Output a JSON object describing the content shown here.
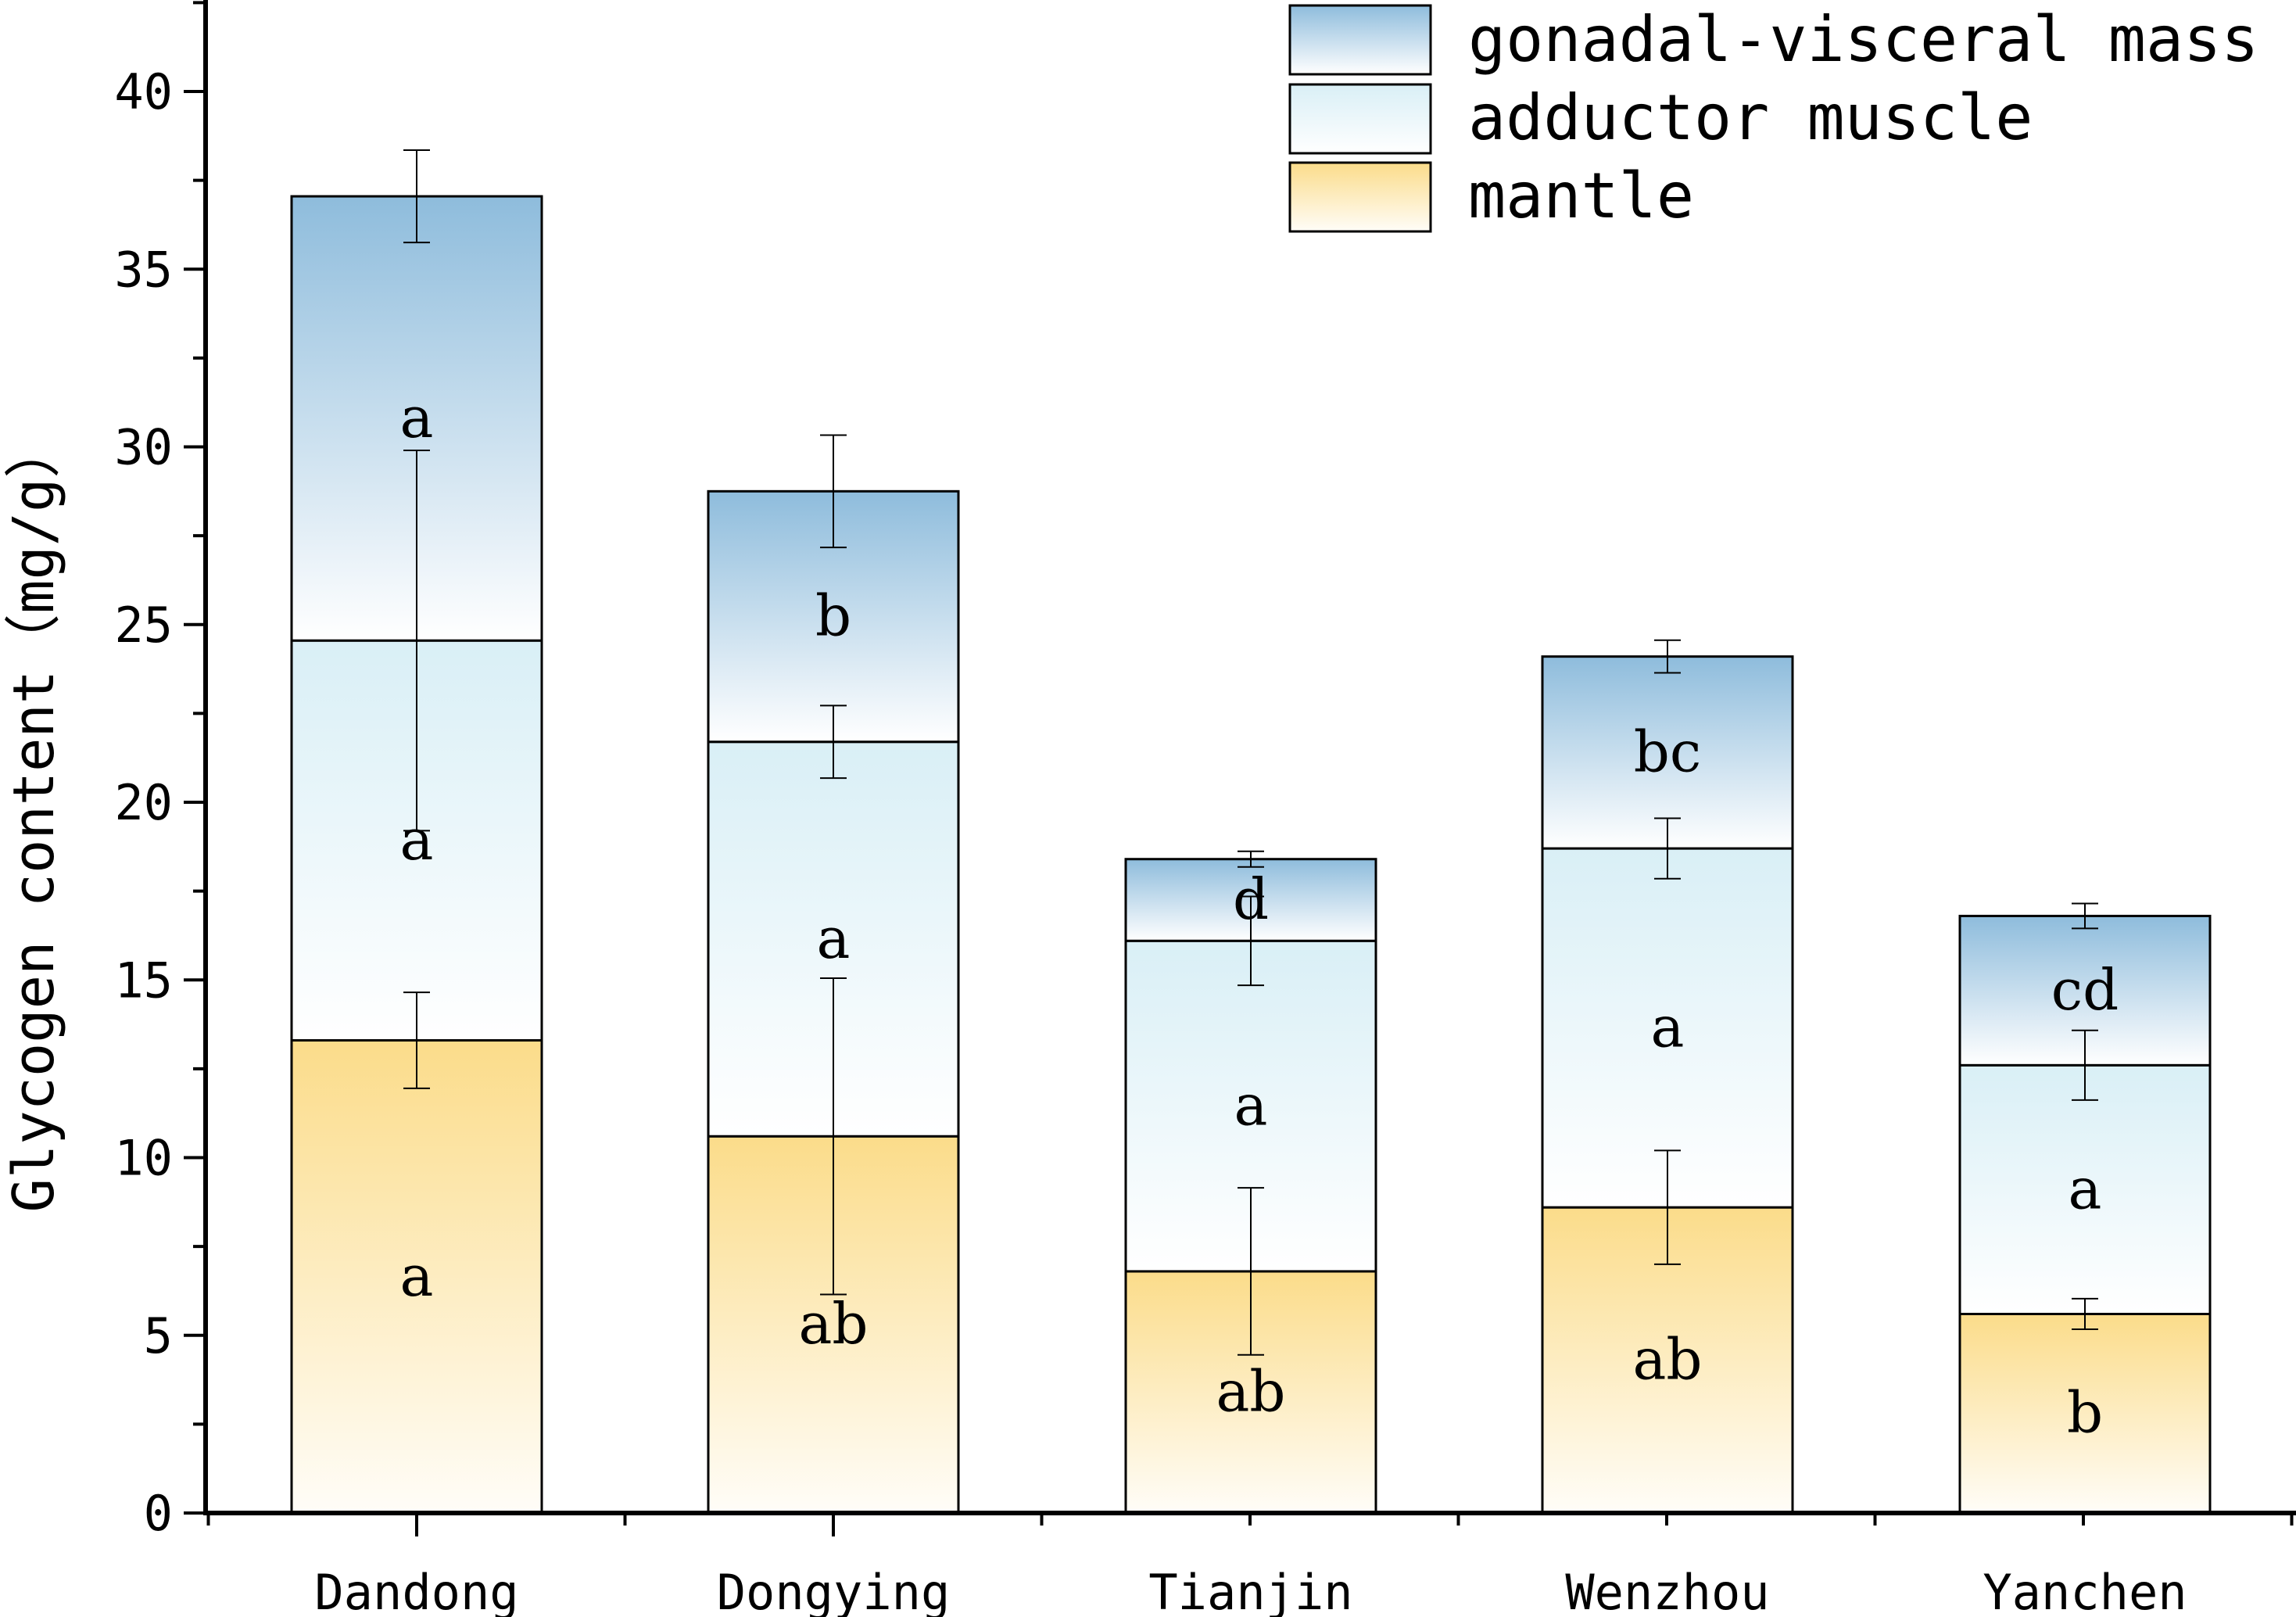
{
  "chart_data": {
    "type": "bar",
    "stacked": true,
    "title": "",
    "xlabel": "",
    "ylabel": "Glycogen content（mg/g）",
    "ylim": [
      0,
      43
    ],
    "yticks": [
      0,
      5,
      10,
      15,
      20,
      25,
      30,
      35,
      40
    ],
    "categories": [
      "Dandong",
      "Dongying",
      "Tianjin",
      "Wenzhou",
      "Yanchen"
    ],
    "legend_position": "top-right",
    "series": [
      {
        "name": "mantle",
        "color_top": "#fbdc8a",
        "color_bottom": "#fffdf8",
        "values": [
          13.3,
          10.6,
          6.8,
          8.6,
          5.6
        ],
        "errors": [
          1.35,
          4.45,
          2.35,
          1.6,
          0.43
        ],
        "letters": [
          "a",
          "ab",
          "ab",
          "ab",
          "b"
        ]
      },
      {
        "name": "adductor muscle",
        "color_top": "#d9eff6",
        "color_bottom": "#ffffff",
        "values": [
          11.25,
          11.1,
          9.3,
          10.1,
          7.0
        ],
        "errors": [
          5.35,
          1.02,
          1.25,
          0.85,
          0.98
        ],
        "letters": [
          "a",
          "a",
          "a",
          "a",
          "a"
        ]
      },
      {
        "name": "gonadal-visceral mass",
        "color_top": "#8ebcdc",
        "color_bottom": "#ffffff",
        "values": [
          12.5,
          7.05,
          2.3,
          5.4,
          4.2
        ],
        "errors": [
          1.3,
          1.58,
          0.22,
          0.46,
          0.35
        ],
        "letters": [
          "a",
          "b",
          "d",
          "bc",
          "cd"
        ]
      }
    ]
  }
}
